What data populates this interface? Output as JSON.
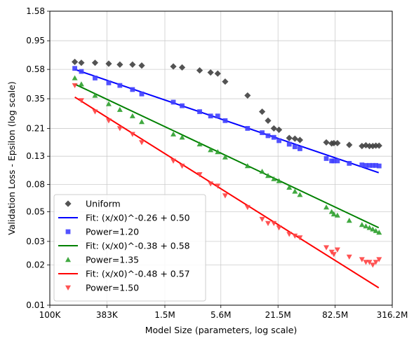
{
  "chart_data": {
    "type": "scatter",
    "title": "",
    "xlabel": "Model Size (parameters, log scale)",
    "ylabel": "Validation Loss - Epsilon (log scale)",
    "x_scale": "log",
    "y_scale": "log",
    "xlim": [
      100000,
      316200000
    ],
    "ylim": [
      0.01,
      1.58
    ],
    "x_ticks": [
      {
        "value": 100000,
        "label": "100K"
      },
      {
        "value": 383000,
        "label": "383K"
      },
      {
        "value": 1500000,
        "label": "1.5M"
      },
      {
        "value": 5600000,
        "label": "5.6M"
      },
      {
        "value": 21500000,
        "label": "21.5M"
      },
      {
        "value": 82500000,
        "label": "82.5M"
      },
      {
        "value": 316200000,
        "label": "316.2M"
      }
    ],
    "y_ticks": [
      {
        "value": 0.01,
        "label": "0.01"
      },
      {
        "value": 0.02,
        "label": "0.02"
      },
      {
        "value": 0.03,
        "label": "0.03"
      },
      {
        "value": 0.05,
        "label": "0.05"
      },
      {
        "value": 0.08,
        "label": "0.08"
      },
      {
        "value": 0.13,
        "label": "0.13"
      },
      {
        "value": 0.21,
        "label": "0.21"
      },
      {
        "value": 0.35,
        "label": "0.35"
      },
      {
        "value": 0.58,
        "label": "0.58"
      },
      {
        "value": 0.95,
        "label": "0.95"
      },
      {
        "value": 1.58,
        "label": "1.58"
      }
    ],
    "grid": true,
    "legend_position": "lower-left",
    "series": [
      {
        "name": "Uniform",
        "kind": "scatter",
        "marker": "diamond",
        "color": "#404040",
        "points": [
          [
            180000,
            0.66
          ],
          [
            210000,
            0.65
          ],
          [
            290000,
            0.65
          ],
          [
            400000,
            0.64
          ],
          [
            520000,
            0.63
          ],
          [
            700000,
            0.63
          ],
          [
            870000,
            0.62
          ],
          [
            1830000,
            0.61
          ],
          [
            2250000,
            0.6
          ],
          [
            3400000,
            0.57
          ],
          [
            4400000,
            0.55
          ],
          [
            5200000,
            0.54
          ],
          [
            6200000,
            0.47
          ],
          [
            10500000,
            0.37
          ],
          [
            14800000,
            0.28
          ],
          [
            17000000,
            0.24
          ],
          [
            19500000,
            0.21
          ],
          [
            22000000,
            0.205
          ],
          [
            28000000,
            0.178
          ],
          [
            32000000,
            0.176
          ],
          [
            36000000,
            0.172
          ],
          [
            67000000,
            0.165
          ],
          [
            76000000,
            0.162
          ],
          [
            80000000,
            0.163
          ],
          [
            87000000,
            0.163
          ],
          [
            115000000,
            0.158
          ],
          [
            155000000,
            0.155
          ],
          [
            170000000,
            0.157
          ],
          [
            185000000,
            0.155
          ],
          [
            200000000,
            0.155
          ],
          [
            215000000,
            0.156
          ],
          [
            232000000,
            0.156
          ]
        ]
      },
      {
        "name": "Fit: (x/x0)^-0.26 + 0.50",
        "kind": "line",
        "color": "#0000ff",
        "points": [
          [
            180000,
            0.58
          ],
          [
            230000000,
            0.098
          ]
        ]
      },
      {
        "name": "Power=1.20",
        "kind": "scatter",
        "marker": "square",
        "color": "#4040ff",
        "points": [
          [
            180000,
            0.59
          ],
          [
            210000,
            0.56
          ],
          [
            290000,
            0.5
          ],
          [
            400000,
            0.46
          ],
          [
            520000,
            0.44
          ],
          [
            700000,
            0.41
          ],
          [
            870000,
            0.38
          ],
          [
            1830000,
            0.33
          ],
          [
            2250000,
            0.31
          ],
          [
            3400000,
            0.28
          ],
          [
            4400000,
            0.26
          ],
          [
            5200000,
            0.26
          ],
          [
            6200000,
            0.24
          ],
          [
            10500000,
            0.21
          ],
          [
            14800000,
            0.195
          ],
          [
            17000000,
            0.185
          ],
          [
            19500000,
            0.18
          ],
          [
            22000000,
            0.17
          ],
          [
            28000000,
            0.16
          ],
          [
            32000000,
            0.153
          ],
          [
            36000000,
            0.148
          ],
          [
            67000000,
            0.125
          ],
          [
            76000000,
            0.12
          ],
          [
            80000000,
            0.12
          ],
          [
            87000000,
            0.12
          ],
          [
            115000000,
            0.115
          ],
          [
            155000000,
            0.112
          ],
          [
            170000000,
            0.111
          ],
          [
            185000000,
            0.111
          ],
          [
            200000000,
            0.111
          ],
          [
            215000000,
            0.111
          ],
          [
            232000000,
            0.11
          ]
        ]
      },
      {
        "name": "Fit: (x/x0)^-0.38 + 0.58",
        "kind": "line",
        "color": "#008000",
        "points": [
          [
            180000,
            0.45
          ],
          [
            230000000,
            0.038
          ]
        ]
      },
      {
        "name": "Power=1.35",
        "kind": "scatter",
        "marker": "triangle-up",
        "color": "#2ca02c",
        "points": [
          [
            180000,
            0.5
          ],
          [
            210000,
            0.45
          ],
          [
            290000,
            0.37
          ],
          [
            400000,
            0.32
          ],
          [
            520000,
            0.29
          ],
          [
            700000,
            0.26
          ],
          [
            870000,
            0.235
          ],
          [
            1830000,
            0.19
          ],
          [
            2250000,
            0.18
          ],
          [
            3400000,
            0.16
          ],
          [
            4400000,
            0.145
          ],
          [
            5200000,
            0.14
          ],
          [
            6200000,
            0.128
          ],
          [
            10500000,
            0.11
          ],
          [
            14800000,
            0.1
          ],
          [
            17000000,
            0.093
          ],
          [
            19500000,
            0.088
          ],
          [
            22000000,
            0.085
          ],
          [
            28000000,
            0.076
          ],
          [
            32000000,
            0.071
          ],
          [
            36000000,
            0.067
          ],
          [
            67000000,
            0.054
          ],
          [
            76000000,
            0.05
          ],
          [
            80000000,
            0.048
          ],
          [
            87000000,
            0.047
          ],
          [
            115000000,
            0.043
          ],
          [
            155000000,
            0.04
          ],
          [
            170000000,
            0.039
          ],
          [
            185000000,
            0.038
          ],
          [
            200000000,
            0.037
          ],
          [
            215000000,
            0.036
          ],
          [
            232000000,
            0.035
          ]
        ]
      },
      {
        "name": "Fit: (x/x0)^-0.48 + 0.57",
        "kind": "line",
        "color": "#ff0000",
        "points": [
          [
            180000,
            0.36
          ],
          [
            230000000,
            0.0135
          ]
        ]
      },
      {
        "name": "Power=1.50",
        "kind": "scatter",
        "marker": "triangle-down",
        "color": "#ff4040",
        "points": [
          [
            180000,
            0.44
          ],
          [
            210000,
            0.34
          ],
          [
            290000,
            0.28
          ],
          [
            400000,
            0.24
          ],
          [
            520000,
            0.21
          ],
          [
            700000,
            0.19
          ],
          [
            870000,
            0.165
          ],
          [
            1830000,
            0.12
          ],
          [
            2250000,
            0.11
          ],
          [
            3400000,
            0.095
          ],
          [
            4400000,
            0.081
          ],
          [
            5200000,
            0.078
          ],
          [
            6200000,
            0.066
          ],
          [
            10500000,
            0.054
          ],
          [
            14800000,
            0.044
          ],
          [
            17000000,
            0.041
          ],
          [
            19500000,
            0.041
          ],
          [
            22000000,
            0.038
          ],
          [
            28000000,
            0.034
          ],
          [
            32000000,
            0.033
          ],
          [
            36000000,
            0.032
          ],
          [
            67000000,
            0.027
          ],
          [
            76000000,
            0.025
          ],
          [
            80000000,
            0.024
          ],
          [
            87000000,
            0.026
          ],
          [
            115000000,
            0.023
          ],
          [
            155000000,
            0.022
          ],
          [
            170000000,
            0.021
          ],
          [
            185000000,
            0.021
          ],
          [
            200000000,
            0.02
          ],
          [
            215000000,
            0.021
          ],
          [
            232000000,
            0.022
          ]
        ]
      }
    ]
  }
}
